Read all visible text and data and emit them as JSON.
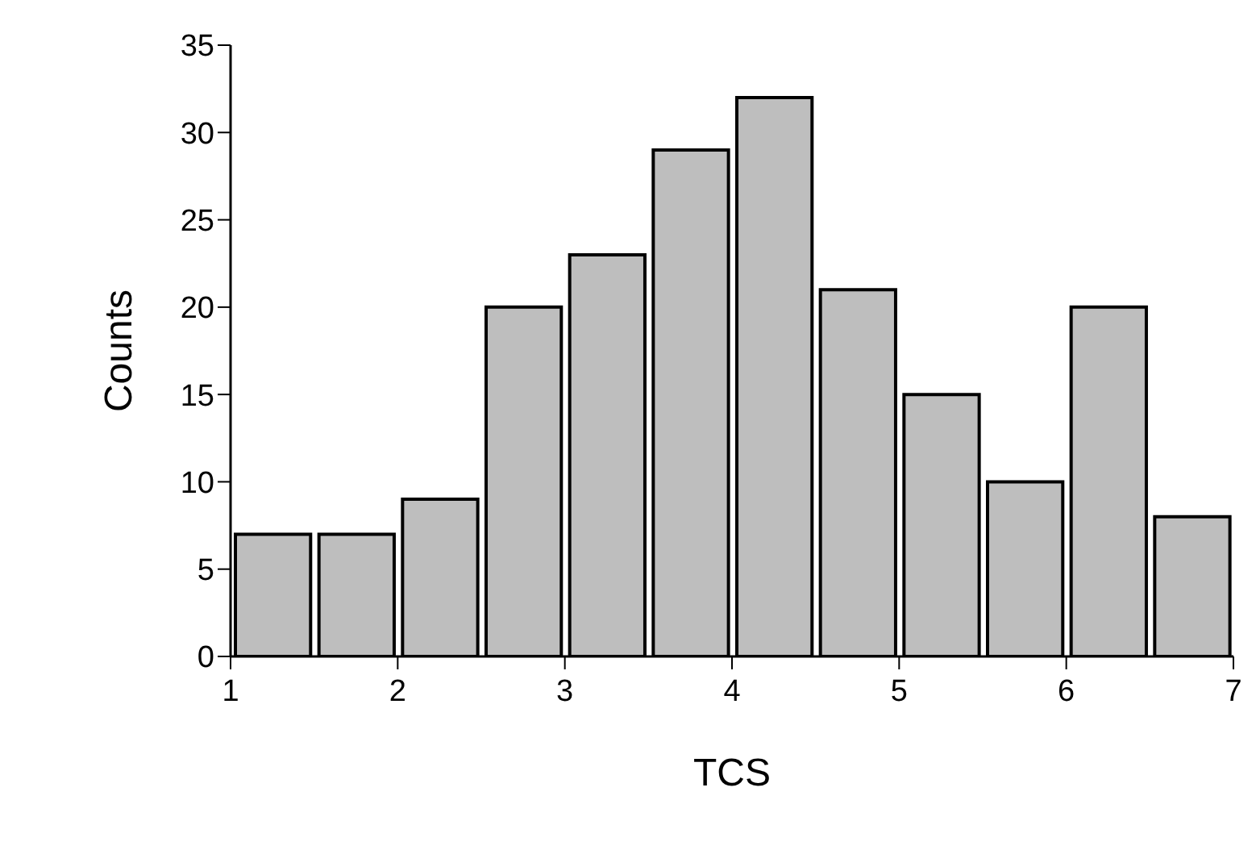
{
  "chart_data": {
    "type": "histogram",
    "xlabel": "TCS",
    "ylabel": "Counts",
    "bins": [
      1,
      1.5,
      2,
      2.5,
      3,
      3.5,
      4,
      4.5,
      5,
      5.5,
      6,
      6.5,
      7
    ],
    "values": [
      7,
      7,
      9,
      20,
      23,
      29,
      32,
      21,
      15,
      10,
      20,
      8
    ],
    "color": "#bebebe",
    "xlim": [
      1,
      7
    ],
    "xticks": [
      1,
      2,
      3,
      4,
      5,
      6,
      7
    ],
    "ylim": [
      0,
      35
    ],
    "yticks": [
      0,
      5,
      10,
      15,
      20,
      25,
      30,
      35
    ],
    "grid": false,
    "legend": false
  }
}
